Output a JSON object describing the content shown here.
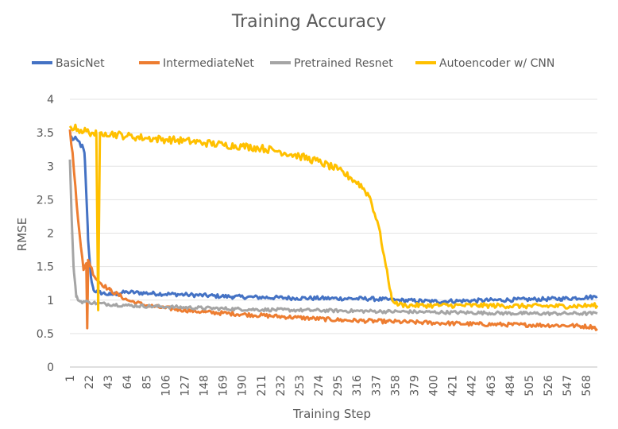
{
  "chart_data": {
    "type": "line",
    "title": "Training Accuracy",
    "xlabel": "Training Step",
    "ylabel": "RMSE",
    "ylim": [
      0,
      4
    ],
    "yticks": [
      "0",
      "0.5",
      "1",
      "1.5",
      "2",
      "2.5",
      "3",
      "3.5",
      "4"
    ],
    "xlim": [
      1,
      580
    ],
    "xticks": [
      "1",
      "22",
      "43",
      "64",
      "85",
      "106",
      "127",
      "148",
      "169",
      "190",
      "211",
      "232",
      "253",
      "274",
      "295",
      "316",
      "337",
      "358",
      "379",
      "400",
      "421",
      "442",
      "463",
      "484",
      "505",
      "526",
      "547",
      "568"
    ],
    "grid": "horizontal",
    "legend": "top",
    "series": [
      {
        "name": "BasicNet",
        "color": "#4472C4",
        "points": [
          [
            1,
            3.45
          ],
          [
            5,
            3.4
          ],
          [
            10,
            3.38
          ],
          [
            14,
            3.3
          ],
          [
            17,
            3.2
          ],
          [
            19,
            2.6
          ],
          [
            21,
            1.9
          ],
          [
            24,
            1.35
          ],
          [
            27,
            1.15
          ],
          [
            32,
            1.12
          ],
          [
            45,
            1.08
          ],
          [
            64,
            1.12
          ],
          [
            90,
            1.1
          ],
          [
            130,
            1.08
          ],
          [
            180,
            1.05
          ],
          [
            250,
            1.03
          ],
          [
            330,
            1.02
          ],
          [
            358,
            1.0
          ],
          [
            400,
            0.98
          ],
          [
            470,
            1.0
          ],
          [
            540,
            1.02
          ],
          [
            580,
            1.05
          ]
        ]
      },
      {
        "name": "IntermediateNet",
        "color": "#ED7D31",
        "points": [
          [
            1,
            3.55
          ],
          [
            4,
            3.2
          ],
          [
            7,
            2.7
          ],
          [
            10,
            2.2
          ],
          [
            13,
            1.8
          ],
          [
            16,
            1.45
          ],
          [
            19,
            1.55
          ],
          [
            20,
            0.58
          ],
          [
            21,
            1.6
          ],
          [
            24,
            1.5
          ],
          [
            28,
            1.35
          ],
          [
            35,
            1.25
          ],
          [
            45,
            1.15
          ],
          [
            64,
            1.0
          ],
          [
            85,
            0.92
          ],
          [
            106,
            0.88
          ],
          [
            150,
            0.82
          ],
          [
            200,
            0.78
          ],
          [
            250,
            0.74
          ],
          [
            300,
            0.7
          ],
          [
            350,
            0.68
          ],
          [
            400,
            0.66
          ],
          [
            450,
            0.64
          ],
          [
            500,
            0.63
          ],
          [
            550,
            0.62
          ],
          [
            575,
            0.6
          ],
          [
            580,
            0.57
          ]
        ]
      },
      {
        "name": "Pretrained Resnet",
        "color": "#A5A5A5",
        "points": [
          [
            1,
            3.1
          ],
          [
            3,
            2.2
          ],
          [
            5,
            1.5
          ],
          [
            8,
            1.05
          ],
          [
            12,
            0.98
          ],
          [
            22,
            0.97
          ],
          [
            32,
            0.95
          ],
          [
            64,
            0.92
          ],
          [
            106,
            0.9
          ],
          [
            150,
            0.88
          ],
          [
            200,
            0.86
          ],
          [
            250,
            0.85
          ],
          [
            300,
            0.84
          ],
          [
            350,
            0.83
          ],
          [
            400,
            0.82
          ],
          [
            450,
            0.81
          ],
          [
            500,
            0.8
          ],
          [
            550,
            0.8
          ],
          [
            580,
            0.8
          ]
        ]
      },
      {
        "name": "Autoencoder w/ CNN",
        "color": "#FFC000",
        "points": [
          [
            1,
            3.6
          ],
          [
            10,
            3.55
          ],
          [
            25,
            3.5
          ],
          [
            30,
            3.48
          ],
          [
            32,
            0.85
          ],
          [
            34,
            3.5
          ],
          [
            40,
            3.5
          ],
          [
            64,
            3.45
          ],
          [
            85,
            3.42
          ],
          [
            106,
            3.4
          ],
          [
            127,
            3.38
          ],
          [
            148,
            3.35
          ],
          [
            169,
            3.32
          ],
          [
            190,
            3.3
          ],
          [
            211,
            3.27
          ],
          [
            232,
            3.22
          ],
          [
            253,
            3.15
          ],
          [
            274,
            3.07
          ],
          [
            295,
            2.95
          ],
          [
            310,
            2.82
          ],
          [
            320,
            2.72
          ],
          [
            330,
            2.55
          ],
          [
            340,
            2.1
          ],
          [
            348,
            1.5
          ],
          [
            354,
            1.05
          ],
          [
            358,
            0.95
          ],
          [
            370,
            0.92
          ],
          [
            400,
            0.92
          ],
          [
            450,
            0.92
          ],
          [
            500,
            0.91
          ],
          [
            550,
            0.91
          ],
          [
            580,
            0.92
          ]
        ]
      }
    ]
  }
}
